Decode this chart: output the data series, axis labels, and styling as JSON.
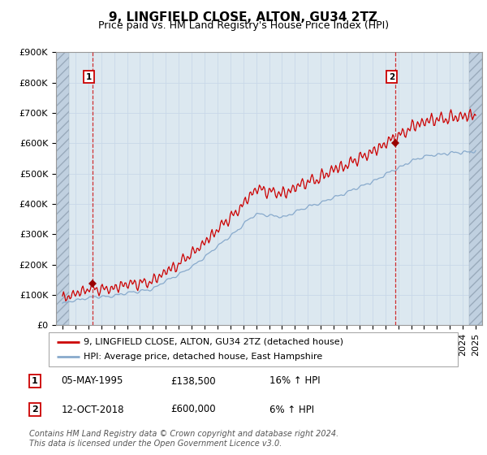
{
  "title": "9, LINGFIELD CLOSE, ALTON, GU34 2TZ",
  "subtitle": "Price paid vs. HM Land Registry's House Price Index (HPI)",
  "ylim": [
    0,
    900000
  ],
  "yticks": [
    0,
    100000,
    200000,
    300000,
    400000,
    500000,
    600000,
    700000,
    800000,
    900000
  ],
  "ytick_labels": [
    "£0",
    "£100K",
    "£200K",
    "£300K",
    "£400K",
    "£500K",
    "£600K",
    "£700K",
    "£800K",
    "£900K"
  ],
  "xlim_start": 1992.5,
  "xlim_end": 2025.5,
  "sale1_year": 1995.35,
  "sale1_price": 138500,
  "sale1_label": "1",
  "sale2_year": 2018.79,
  "sale2_price": 600000,
  "sale2_label": "2",
  "line_color_price": "#cc0000",
  "line_color_hpi": "#88aacc",
  "marker_color": "#990000",
  "grid_color": "#c8d8e8",
  "plot_bg": "#dce8f0",
  "hatch_left_end": 1993.5,
  "hatch_right_start": 2024.5,
  "legend_line1": "9, LINGFIELD CLOSE, ALTON, GU34 2TZ (detached house)",
  "legend_line2": "HPI: Average price, detached house, East Hampshire",
  "annotation1_date": "05-MAY-1995",
  "annotation1_price": "£138,500",
  "annotation1_hpi": "16% ↑ HPI",
  "annotation2_date": "12-OCT-2018",
  "annotation2_price": "£600,000",
  "annotation2_hpi": "6% ↑ HPI",
  "footer": "Contains HM Land Registry data © Crown copyright and database right 2024.\nThis data is licensed under the Open Government Licence v3.0.",
  "title_fontsize": 11,
  "subtitle_fontsize": 9,
  "tick_fontsize": 8,
  "label_fontsize": 8.5
}
